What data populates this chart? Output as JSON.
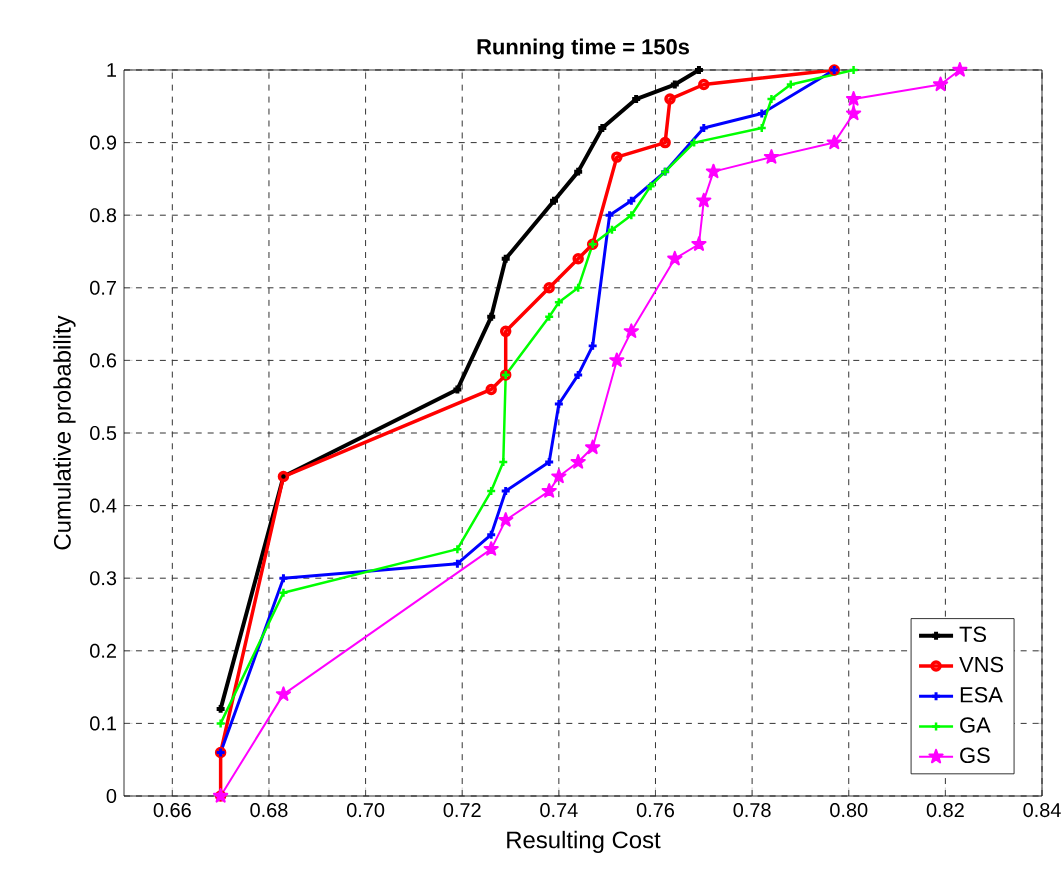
{
  "chart_data": {
    "type": "line",
    "title": "Running time = 150s",
    "xlabel": "Resulting Cost",
    "ylabel": "Cumulative probability",
    "xlim": [
      0.65,
      0.84
    ],
    "ylim": [
      0,
      1
    ],
    "xticks": [
      0.66,
      0.68,
      {
        "value": 0.7,
        "label": "0.70"
      },
      0.72,
      0.74,
      0.76,
      0.78,
      {
        "value": 0.8,
        "label": "0.80"
      },
      0.82,
      0.84
    ],
    "yticks": [
      0,
      0.1,
      0.2,
      0.3,
      0.4,
      0.5,
      0.6,
      0.7,
      0.8,
      0.9,
      1
    ],
    "grid": true,
    "legend": "bottom right",
    "line_style": "solid",
    "series": [
      {
        "name": "TS",
        "color": "#000000",
        "marker": "cross",
        "x": [
          0.67,
          0.683,
          0.719,
          0.726,
          0.729,
          0.739,
          0.744,
          0.749,
          0.756,
          0.764,
          0.769
        ],
        "values": [
          0.12,
          0.44,
          0.56,
          0.66,
          0.74,
          0.82,
          0.86,
          0.92,
          0.96,
          0.98,
          1.0
        ]
      },
      {
        "name": "VNS",
        "color": "#ff0000",
        "marker": "circle",
        "x": [
          0.67,
          0.67,
          0.683,
          0.726,
          0.729,
          0.729,
          0.738,
          0.744,
          0.747,
          0.752,
          0.762,
          0.763,
          0.77,
          0.797
        ],
        "values": [
          0,
          0.06,
          0.44,
          0.56,
          0.58,
          0.64,
          0.7,
          0.74,
          0.76,
          0.88,
          0.9,
          0.96,
          0.98,
          1.0
        ]
      },
      {
        "name": "ESA",
        "color": "#0000ff",
        "marker": "cross",
        "x": [
          0.67,
          0.683,
          0.719,
          0.726,
          0.729,
          0.738,
          0.74,
          0.744,
          0.747,
          0.7505,
          0.755,
          0.762,
          0.77,
          0.782,
          0.797
        ],
        "values": [
          0.06,
          0.3,
          0.32,
          0.36,
          0.42,
          0.46,
          0.54,
          0.58,
          0.62,
          0.8,
          0.82,
          0.86,
          0.92,
          0.94,
          1.0
        ]
      },
      {
        "name": "GA",
        "color": "#00ff00",
        "marker": "cross",
        "x": [
          0.67,
          0.683,
          0.719,
          0.726,
          0.7285,
          0.729,
          0.738,
          0.74,
          0.744,
          0.747,
          0.751,
          0.755,
          0.759,
          0.762,
          0.768,
          0.782,
          0.784,
          0.788,
          0.801
        ],
        "values": [
          0.1,
          0.28,
          0.34,
          0.42,
          0.46,
          0.58,
          0.66,
          0.68,
          0.7,
          0.76,
          0.78,
          0.8,
          0.84,
          0.86,
          0.9,
          0.92,
          0.96,
          0.98,
          1.0
        ]
      },
      {
        "name": "GS",
        "color": "#ff00ff",
        "marker": "star",
        "x": [
          0.67,
          0.683,
          0.726,
          0.729,
          0.738,
          0.74,
          0.744,
          0.747,
          0.752,
          0.755,
          0.764,
          0.769,
          0.77,
          0.772,
          0.784,
          0.797,
          0.801,
          0.801,
          0.819,
          0.823
        ],
        "values": [
          0,
          0.14,
          0.34,
          0.38,
          0.42,
          0.44,
          0.46,
          0.48,
          0.6,
          0.64,
          0.74,
          0.76,
          0.82,
          0.86,
          0.88,
          0.9,
          0.94,
          0.96,
          0.98,
          1.0
        ]
      }
    ]
  }
}
